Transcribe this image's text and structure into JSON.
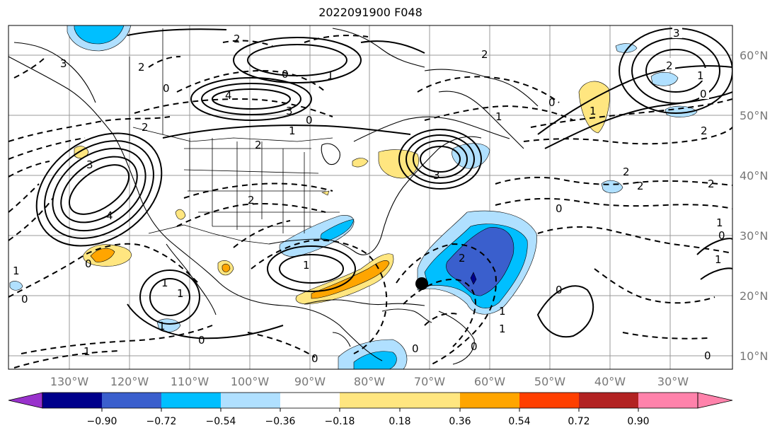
{
  "title": "2022091900 F048",
  "lon_labels": [
    "130°W",
    "120°W",
    "110°W",
    "100°W",
    "90°W",
    "80°W",
    "70°W",
    "60°W",
    "50°W",
    "40°W",
    "30°W"
  ],
  "lat_labels": [
    "60°N",
    "50°N",
    "40°N",
    "30°N",
    "20°N",
    "10°N"
  ],
  "colorbar": {
    "tick_labels": [
      "−0.90",
      "−0.72",
      "−0.54",
      "−0.36",
      "−0.18",
      "0.18",
      "0.36",
      "0.54",
      "0.72",
      "0.90"
    ],
    "colors": [
      "#9932cc",
      "#00008b",
      "#3a5fcd",
      "#00bfff",
      "#b0e0ff",
      "#ffffff",
      "#ffe680",
      "#ffa500",
      "#ff3f00",
      "#b22222",
      "#ff82ab"
    ]
  },
  "contour_labels": [
    "3",
    "2",
    "0",
    "1",
    "1",
    "3",
    "4",
    "3",
    "3",
    "2",
    "1",
    "0",
    "2",
    "1",
    "0",
    "1",
    "2",
    "4",
    "0",
    "1",
    "1",
    "2",
    "0",
    "3",
    "2",
    "2",
    "2",
    "1",
    "1",
    "0",
    "0",
    "1",
    "1",
    "0",
    "1",
    "0",
    "0",
    "1",
    "2",
    "2",
    "0",
    "0",
    "2",
    "0",
    "1",
    "1",
    "0",
    "2",
    "0"
  ],
  "marker": {
    "label": "storm-center"
  }
}
